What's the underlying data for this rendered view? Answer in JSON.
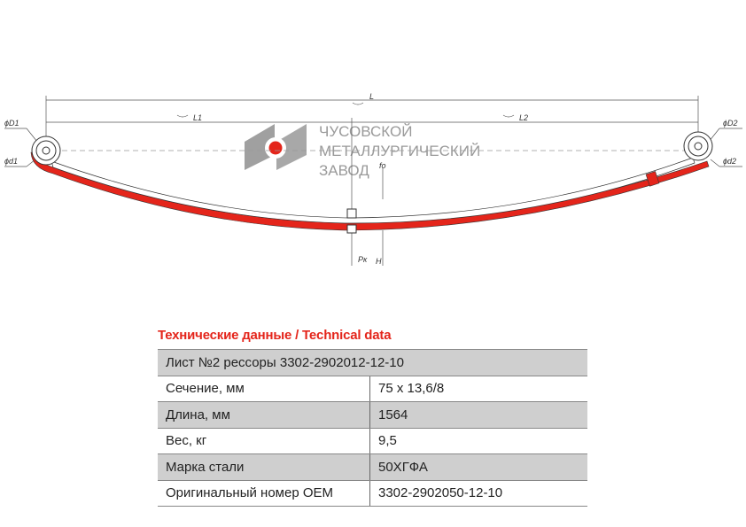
{
  "drawing": {
    "labels": {
      "L": "L",
      "L1": "L1",
      "L2": "L2",
      "D1": "ϕD1",
      "d1": "ϕd1",
      "D2": "ϕD2",
      "d2": "ϕd2",
      "Pk": "Pк",
      "H": "H",
      "f": "fo"
    },
    "logo": {
      "lines": [
        "ЧУСОВСКОЙ",
        "МЕТАЛЛУРГИЧЕСКИЙ",
        "ЗАВОД"
      ]
    },
    "colors": {
      "leaf": "#e4251b",
      "logo_gray": "#9a9a9a",
      "accent": "#e4251b"
    }
  },
  "table": {
    "title": "Технические данные / Technical data",
    "header": "Лист №2 рессоры 3302-2902012-12-10",
    "rows": [
      {
        "label": "Сечение, мм",
        "value": "75 x 13,6/8"
      },
      {
        "label": "Длина, мм",
        "value": "1564"
      },
      {
        "label": "Вес, кг",
        "value": "9,5"
      },
      {
        "label": "Марка стали",
        "value": "50ХГФА"
      },
      {
        "label": "Оригинальный номер OEM",
        "value": "3302-2902050-12-10"
      }
    ]
  }
}
